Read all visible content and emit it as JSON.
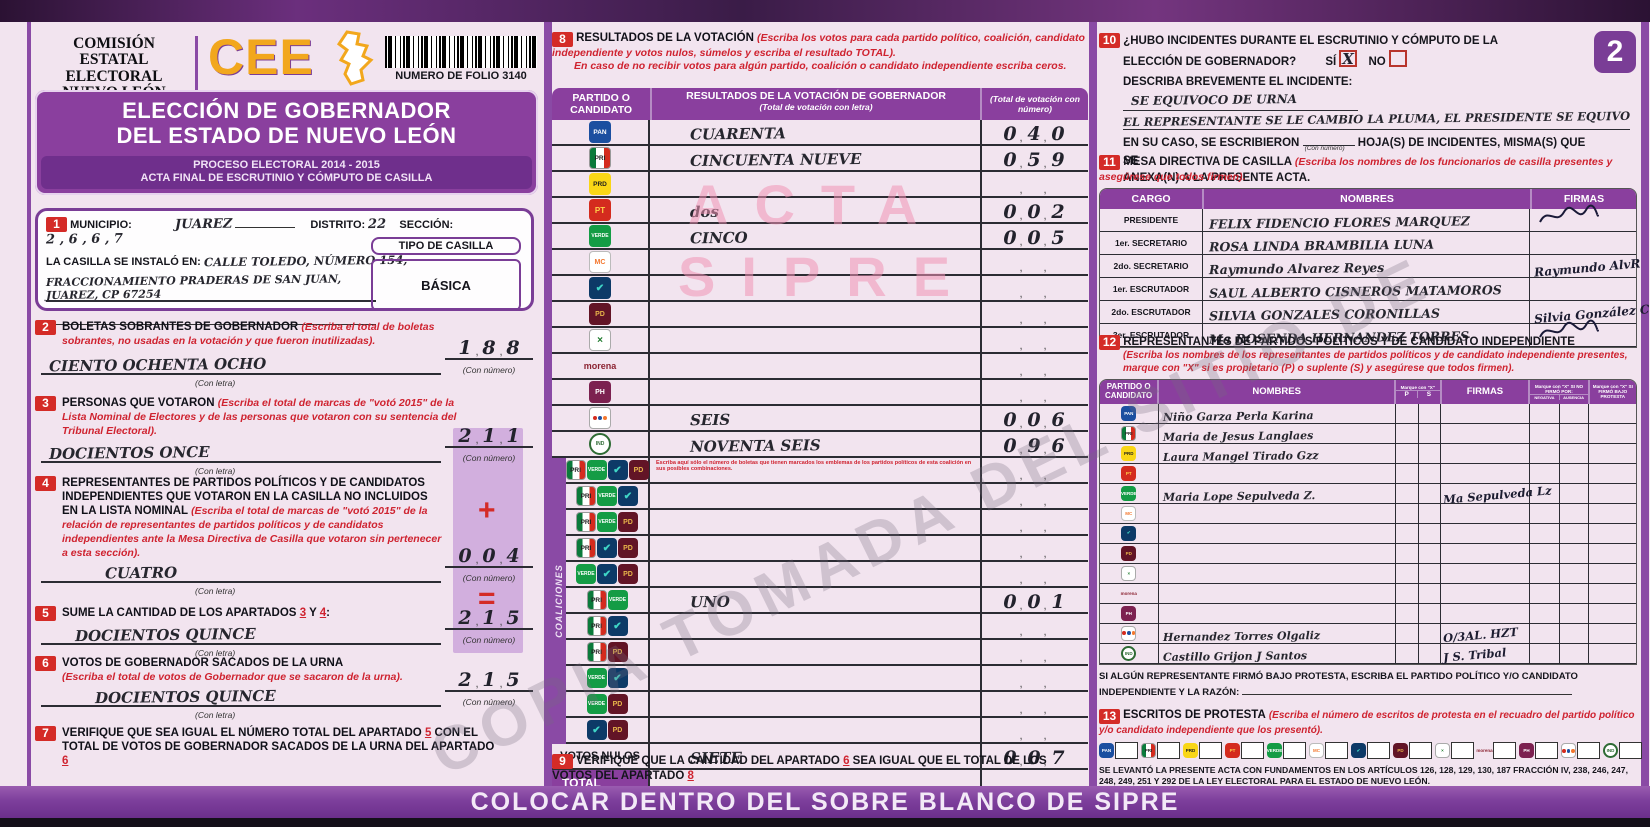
{
  "header": {
    "org_lines": [
      "COMISIÓN",
      "ESTATAL",
      "ELECTORAL",
      "NUEVO LEÓN"
    ],
    "logo_text": "CEE",
    "folio_label": "NUMERO DE FOLIO 3140"
  },
  "title": {
    "line1": "ELECCIÓN DE GOBERNADOR",
    "line2": "DEL ESTADO DE NUEVO LEÓN",
    "process": "PROCESO ELECTORAL 2014 - 2015",
    "acta": "ACTA FINAL DE ESCRUTINIO Y CÓMPUTO DE CASILLA"
  },
  "page_badge": "2",
  "con_letra": "(Con letra)",
  "con_numero": "(Con número)",
  "sec1": {
    "num": "1",
    "municipio_label": "MUNICIPIO:",
    "municipio": "JUAREZ",
    "distrito_label": "DISTRITO:",
    "distrito": "22",
    "seccion_label": "SECCIÓN:",
    "seccion": "2 , 6 , 6 , 7",
    "instalada_label": "LA CASILLA SE INSTALÓ EN:",
    "direccion1": "CALLE TOLEDO, NÚMERO 154,",
    "direccion2": "FRACCIONAMIENTO PRADERAS DE SAN JUAN, JUAREZ, CP 67254",
    "tipo_label": "TIPO DE CASILLA",
    "tipo": "BÁSICA"
  },
  "sec2": {
    "num": "2",
    "title": "BOLETAS SOBRANTES DE GOBERNADOR",
    "note": "(Escriba el total de boletas sobrantes, no usadas en la votación y que fueron inutilizadas).",
    "letra": "CIENTO OCHENTA OCHO",
    "numero": "188"
  },
  "sec3": {
    "num": "3",
    "title": "PERSONAS QUE VOTARON",
    "note": "(Escriba el total de marcas de \"votó 2015\" de la Lista Nominal de Electores y de las personas que votaron con su sentencia del Tribunal Electoral).",
    "letra": "DOCIENTOS ONCE",
    "numero": "211"
  },
  "sec4": {
    "num": "4",
    "title": "REPRESENTANTES DE PARTIDOS POLÍTICOS Y DE CANDIDATOS INDEPENDIENTES QUE VOTARON EN LA CASILLA NO INCLUIDOS EN LA LISTA NOMINAL",
    "note": "(Escriba el total de marcas de \"votó 2015\" de la relación de representantes de partidos políticos y de candidatos independientes ante la Mesa Directiva de Casilla que votaron sin pertenecer a esta sección).",
    "letra": "CUATRO",
    "numero": "004",
    "plus": "+"
  },
  "sec5": {
    "num": "5",
    "title_pre": "SUME LA CANTIDAD DE LOS APARTADOS",
    "n3": "3",
    "y": "Y",
    "n4": "4",
    "colon": ":",
    "letra": "DOCIENTOS QUINCE",
    "numero": "215",
    "equals": "="
  },
  "sec6": {
    "num": "6",
    "title": "VOTOS DE GOBERNADOR SACADOS DE LA URNA",
    "note": "(Escriba el total de votos de Gobernador que se sacaron de la urna).",
    "letra": "DOCIENTOS QUINCE",
    "numero": "215"
  },
  "sec7": {
    "num": "7",
    "pre": "VERIFIQUE QUE SEA IGUAL EL NÚMERO TOTAL DEL APARTADO",
    "n5": "5",
    "mid": "CON EL TOTAL DE VOTOS DE GOBERNADOR SACADOS DE LA URNA DEL APARTADO",
    "n6": "6"
  },
  "sec8": {
    "num": "8",
    "title": "RESULTADOS DE LA VOTACIÓN",
    "note": "(Escriba los votos para cada partido político, coalición, candidato independiente y votos nulos, súmelos y escriba el resultado TOTAL).",
    "note2": "En caso de no recibir votos para algún partido, coalición o candidato independiente escriba ceros.",
    "h_party": "PARTIDO O CANDIDATO",
    "h_res": "RESULTADOS DE LA VOTACIÓN DE GOBERNADOR",
    "h_res_sub": "(Total de votación con letra)",
    "h_num": "(Total de votación con número)",
    "parties": [
      {
        "id": "pan",
        "letra": "CUARENTA",
        "numero": "040"
      },
      {
        "id": "pri",
        "letra": "CINCUENTA NUEVE",
        "numero": "059"
      },
      {
        "id": "prd",
        "letra": "",
        "numero": ""
      },
      {
        "id": "pt",
        "letra": "dos",
        "numero": "002"
      },
      {
        "id": "verde",
        "letra": "CINCO",
        "numero": "005"
      },
      {
        "id": "mc",
        "letra": "",
        "numero": ""
      },
      {
        "id": "alianza",
        "letra": "",
        "numero": ""
      },
      {
        "id": "pd",
        "letra": "",
        "numero": ""
      },
      {
        "id": "cc",
        "letra": "",
        "numero": ""
      },
      {
        "id": "morena",
        "letra": "",
        "numero": ""
      },
      {
        "id": "humanista",
        "letra": "",
        "numero": ""
      },
      {
        "id": "es",
        "letra": "SEIS",
        "numero": "006"
      },
      {
        "id": "indep",
        "letra": "NOVENTA SEIS",
        "numero": "096"
      }
    ],
    "coalitions_label": "COALICIONES",
    "coalition_note": "Escriba aquí sólo el número de boletas que tienen marcados los emblemas de los partidos políticos de esta coalición en sus posibles combinaciones.",
    "coalitions": [
      {
        "combo": [
          "pri",
          "verde",
          "alianza",
          "pd"
        ],
        "letra": "",
        "numero": ""
      },
      {
        "combo": [
          "pri",
          "verde",
          "alianza"
        ],
        "letra": "",
        "numero": ""
      },
      {
        "combo": [
          "pri",
          "verde",
          "pd"
        ],
        "letra": "",
        "numero": ""
      },
      {
        "combo": [
          "pri",
          "alianza",
          "pd"
        ],
        "letra": "",
        "numero": ""
      },
      {
        "combo": [
          "verde",
          "alianza",
          "pd"
        ],
        "letra": "",
        "numero": ""
      },
      {
        "combo": [
          "pri",
          "verde"
        ],
        "letra": "UNO",
        "numero": "001"
      },
      {
        "combo": [
          "pri",
          "alianza"
        ],
        "letra": "",
        "numero": ""
      },
      {
        "combo": [
          "pri",
          "pd"
        ],
        "letra": "",
        "numero": ""
      },
      {
        "combo": [
          "verde",
          "alianza"
        ],
        "letra": "",
        "numero": ""
      },
      {
        "combo": [
          "verde",
          "pd"
        ],
        "letra": "",
        "numero": ""
      },
      {
        "combo": [
          "alianza",
          "pd"
        ],
        "letra": "",
        "numero": ""
      }
    ],
    "votos_nulos_label": "VOTOS NULOS",
    "votos_nulos_letra": "SIETE",
    "votos_nulos_numero": "007",
    "total_label": "TOTAL",
    "total_letra": "",
    "total_numero": ""
  },
  "sec9": {
    "num": "9",
    "pre": "VERIFIQUE QUE LA CANTIDAD DEL APARTADO",
    "n6": "6",
    "mid": "SEA IGUAL QUE EL TOTAL DE LOS VOTOS DEL APARTADO",
    "n8": "8"
  },
  "sec10": {
    "num": "10",
    "q1": "¿HUBO INCIDENTES DURANTE EL ESCRUTINIO Y CÓMPUTO DE LA",
    "q2": "ELECCIÓN DE GOBERNADOR?",
    "si": "SÍ",
    "si_mark": "X",
    "no": "NO",
    "describe_label": "DESCRIBA BREVEMENTE EL INCIDENTE:",
    "incident1": "SE EQUIVOCO DE URNA",
    "incident2": "EL REPRESENTANTE SE LE CAMBIO LA PLUMA, EL PRESIDENTE SE EQUIVO",
    "encaso1": "EN SU CASO, SE ESCRIBIERON",
    "encaso2": "HOJA(S) DE INCIDENTES, MISMA(S) QUE SE",
    "encaso3": "ANEXA(N) A LA PRESENTE ACTA."
  },
  "sec11": {
    "num": "11",
    "title": "MESA DIRECTIVA DE CASILLA",
    "note": "(Escriba los nombres de los funcionarios de casilla presentes y asegúrese que todos firmen).",
    "h_cargo": "CARGO",
    "h_nombres": "NOMBRES",
    "h_firmas": "FIRMAS",
    "rows": [
      {
        "cargo": "PRESIDENTE",
        "nombre": "FELIX FIDENCIO FLORES MARQUEZ",
        "firma": "@scribble"
      },
      {
        "cargo": "1er. SECRETARIO",
        "nombre": "ROSA LINDA BRAMBILIA LUNA",
        "firma": ""
      },
      {
        "cargo": "2do. SECRETARIO",
        "nombre": "Raymundo Alvarez Reyes",
        "firma": "Raymundo AlvR"
      },
      {
        "cargo": "1er. ESCRUTADOR",
        "nombre": "SAUL ALBERTO CISNEROS MATAMOROS",
        "firma": ""
      },
      {
        "cargo": "2do. ESCRUTADOR",
        "nombre": "SILVIA GONZALES CORONILLAS",
        "firma": "Silvia González C."
      },
      {
        "cargo": "3er. ESCRUTADOR",
        "nombre": "Ma ROSENDA HERNANDEZ TORRES",
        "firma": "@scribble"
      }
    ]
  },
  "sec12": {
    "num": "12",
    "title": "REPRESENTANTES DE PARTIDOS POLÍTICOS Y DE CANDIDATO INDEPENDIENTE",
    "note": "(Escriba los nombres de los representantes de partidos políticos y de candidato independiente presentes, marque con \"X\" si es propietario (P) o suplente (S) y asegúrese que todos firmen).",
    "h_party": "PARTIDO O CANDIDATO",
    "h_nombres": "NOMBRES",
    "h_marque": "Marque con \"X\"",
    "h_p": "P",
    "h_s": "S",
    "h_firmas": "FIRMAS",
    "h_nofirmo": "Marque con \"X\" SI NO FIRMÓ POR:",
    "h_negativa": "NEGATIVA",
    "h_ausencia": "AUSENCIA",
    "h_protesta": "Marque con \"X\" SI FIRMÓ BAJO PROTESTA",
    "rows": [
      {
        "party": "pan",
        "nombre": "Niño Garza Perla Karina",
        "firma": ""
      },
      {
        "party": "pri",
        "nombre": "Maria de Jesus Langlaes",
        "firma": ""
      },
      {
        "party": "prd",
        "nombre": "Laura Mangel Tirado Gzz",
        "firma": ""
      },
      {
        "party": "pt",
        "nombre": "",
        "firma": ""
      },
      {
        "party": "verde",
        "nombre": "Maria Lope Sepulveda Z.",
        "firma": "Ma Sepulveda Lz"
      },
      {
        "party": "mc",
        "nombre": "",
        "firma": ""
      },
      {
        "party": "alianza",
        "nombre": "",
        "firma": ""
      },
      {
        "party": "pd",
        "nombre": "",
        "firma": ""
      },
      {
        "party": "cc",
        "nombre": "",
        "firma": ""
      },
      {
        "party": "morena",
        "nombre": "",
        "firma": ""
      },
      {
        "party": "humanista",
        "nombre": "",
        "firma": ""
      },
      {
        "party": "es",
        "nombre": "Hernandez Torres Olgaliz",
        "firma": "O/3AL. HZT"
      },
      {
        "party": "indep",
        "nombre": "Castillo Grijon J Santos",
        "firma": "J S. Tribal"
      }
    ],
    "bajo_protesta": "SI ALGÚN REPRESENTANTE FIRMÓ BAJO PROTESTA, ESCRIBA EL PARTIDO POLÍTICO Y/O CANDIDATO INDEPENDIENTE Y LA RAZÓN:"
  },
  "sec13": {
    "num": "13",
    "title": "ESCRITOS DE PROTESTA",
    "note": "(Escriba el número de escritos de protesta en el recuadro del partido político y/o candidato independiente que los presentó).",
    "parties": [
      "pan",
      "pri",
      "prd",
      "pt",
      "verde",
      "mc",
      "alianza",
      "pd",
      "cc",
      "morena",
      "humanista",
      "es",
      "indep"
    ]
  },
  "legal": "SE LEVANTÓ LA PRESENTE ACTA CON FUNDAMENTOS EN LOS ARTÍCULOS 126, 128, 129, 130, 187 FRACCIÓN IV, 238, 246, 247, 248, 249, 251 Y 292 DE LA LEY ELECTORAL PARA EL ESTADO DE NUEVO LEÓN.",
  "banner": "COLOCAR DENTRO DEL SOBRE BLANCO DE SIPRE",
  "watermarks": {
    "acta1": "ACTA",
    "acta2": "SIPRE",
    "copia": "COPIA TOMADA DEL SITIO DE"
  },
  "colors": {
    "purple": "#8a3f9e",
    "purple_dark": "#6f2f8c",
    "lavender": "#cda6da",
    "red_badge": "#d42b27",
    "orange_logo": "#f2a71d",
    "pink_watermark": "#f094b4"
  },
  "parties_catalog": {
    "pan": {
      "name": "PAN",
      "abbr": "PAN"
    },
    "pri": {
      "name": "PRI",
      "abbr": "PRI"
    },
    "prd": {
      "name": "PRD",
      "abbr": "PRD"
    },
    "pt": {
      "name": "PT",
      "abbr": "PT"
    },
    "verde": {
      "name": "PARTIDO VERDE",
      "abbr": "VERDE"
    },
    "mc": {
      "name": "MOVIMIENTO CIUDADANO",
      "abbr": "MC"
    },
    "alianza": {
      "name": "NUEVA ALIANZA",
      "abbr": "✔"
    },
    "pd": {
      "name": "PARTIDO DEMÓCRATA",
      "abbr": "PD"
    },
    "cc": {
      "name": "CRUZADA CIUDADANA",
      "abbr": "×"
    },
    "morena": {
      "name": "MORENA",
      "abbr": "morena"
    },
    "humanista": {
      "name": "PARTIDO HUMANISTA",
      "abbr": "PH"
    },
    "es": {
      "name": "ENCUENTRO SOCIAL",
      "abbr": ""
    },
    "indep": {
      "name": "CANDIDATO INDEPENDIENTE",
      "abbr": "IND"
    }
  }
}
